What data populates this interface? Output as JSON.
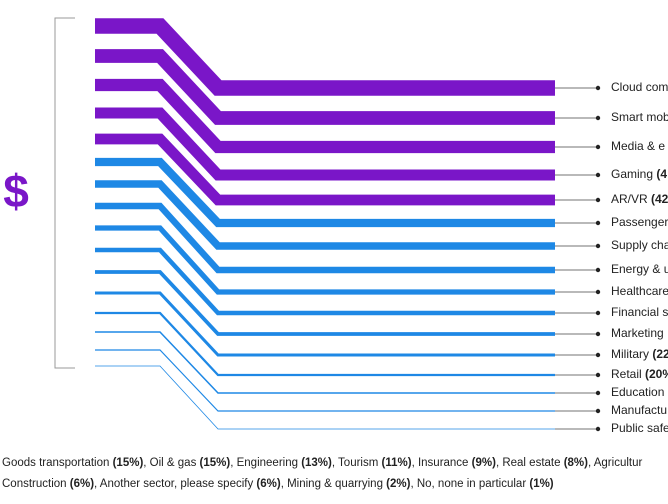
{
  "chart_data": {
    "type": "flow",
    "symbol": "$",
    "categories": [
      {
        "name": "Cloud com",
        "pct": ""
      },
      {
        "name": "Smart mob",
        "pct": ""
      },
      {
        "name": "Media & e",
        "pct": ""
      },
      {
        "name": "Gaming ",
        "pct": "(4"
      },
      {
        "name": "AR/VR ",
        "pct": "(42"
      },
      {
        "name": "Passenger",
        "pct": ""
      },
      {
        "name": "Supply cha",
        "pct": ""
      },
      {
        "name": "Energy & u",
        "pct": ""
      },
      {
        "name": "Healthcare",
        "pct": ""
      },
      {
        "name": "Financial s",
        "pct": ""
      },
      {
        "name": "Marketing",
        "pct": ""
      },
      {
        "name": "Military ",
        "pct": "(22"
      },
      {
        "name": "Retail ",
        "pct": "(20%"
      },
      {
        "name": "Education",
        "pct": ""
      },
      {
        "name": "Manufactu",
        "pct": ""
      },
      {
        "name": "Public safe",
        "pct": ""
      }
    ],
    "values": [
      55,
      50,
      46,
      43,
      42,
      36,
      34,
      31,
      28,
      26,
      24,
      22,
      20,
      18,
      17,
      16
    ],
    "colors": [
      "#7a16c8",
      "#7a16c8",
      "#7a16c8",
      "#7a16c8",
      "#7a16c8",
      "#1e88e5",
      "#1e88e5",
      "#1e88e5",
      "#1e88e5",
      "#1e88e5",
      "#1e88e5",
      "#1e88e5",
      "#1e88e5",
      "#1e88e5",
      "#1e88e5",
      "#1e88e5"
    ],
    "footer": [
      [
        {
          "t": "Goods transportation ",
          "b": false
        },
        {
          "t": "(15%)",
          "b": true
        },
        {
          "t": ", Oil & gas ",
          "b": false
        },
        {
          "t": "(15%)",
          "b": true
        },
        {
          "t": ", Engineering ",
          "b": false
        },
        {
          "t": "(13%)",
          "b": true
        },
        {
          "t": ", Tourism ",
          "b": false
        },
        {
          "t": "(11%)",
          "b": true
        },
        {
          "t": ", Insurance ",
          "b": false
        },
        {
          "t": "(9%)",
          "b": true
        },
        {
          "t": ",  Real estate ",
          "b": false
        },
        {
          "t": "(8%)",
          "b": true
        },
        {
          "t": ", Agricultur",
          "b": false
        }
      ],
      [
        {
          "t": "Construction ",
          "b": false
        },
        {
          "t": "(6%)",
          "b": true
        },
        {
          "t": ", Another sector, please specify ",
          "b": false
        },
        {
          "t": "(6%)",
          "b": true
        },
        {
          "t": ", Mining & quarrying ",
          "b": false
        },
        {
          "t": "(2%)",
          "b": true
        },
        {
          "t": ", No, none in particular ",
          "b": false
        },
        {
          "t": "(1%)",
          "b": true
        }
      ]
    ]
  }
}
